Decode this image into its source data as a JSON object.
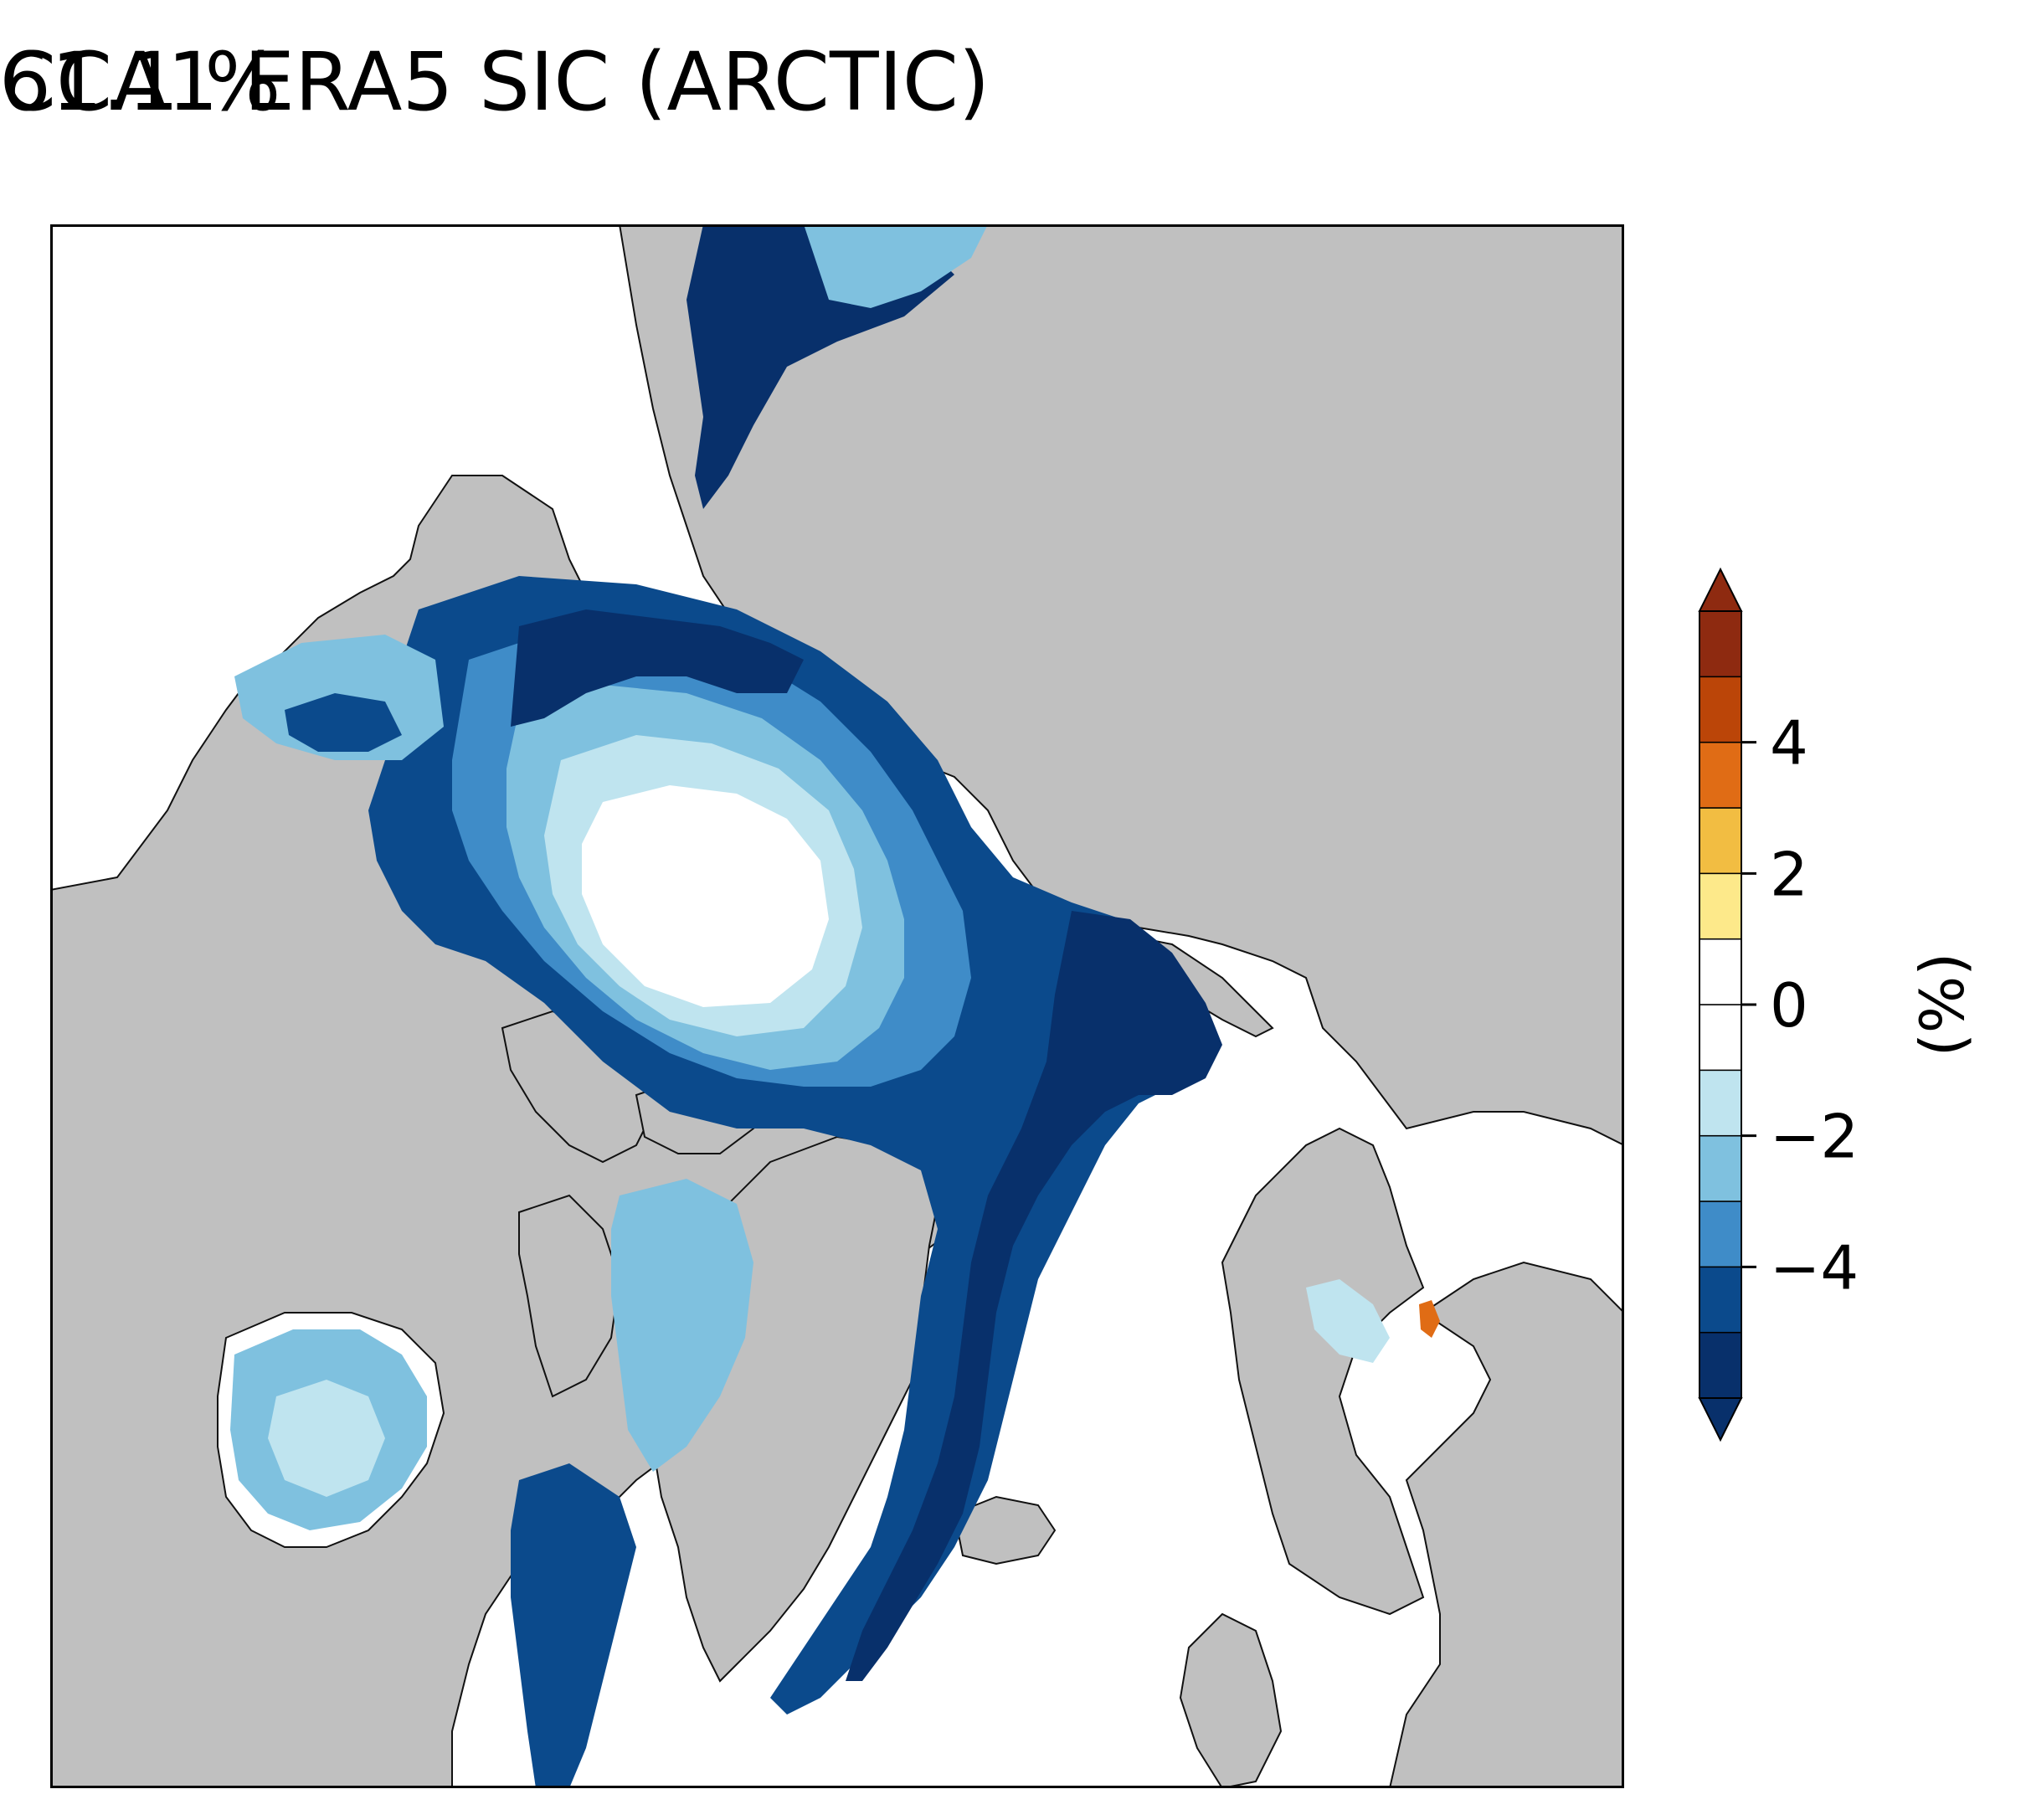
{
  "title": {
    "left": "CCA1 ERA5 SIC (ARCTIC)",
    "right": "61.1 %"
  },
  "colorbar": {
    "label": "(%)",
    "ticks": [
      {
        "value": 4,
        "label": "4"
      },
      {
        "value": 2,
        "label": "2"
      },
      {
        "value": 0,
        "label": "0"
      },
      {
        "value": -2,
        "label": "−2"
      },
      {
        "value": -4,
        "label": "−4"
      }
    ],
    "levels": [
      -6,
      -5,
      -4,
      -3,
      -2,
      -1,
      0,
      1,
      2,
      3,
      4,
      5,
      6
    ],
    "colors": [
      "#08306b",
      "#0b4a8c",
      "#3f8cc8",
      "#7fc1df",
      "#bfe4ef",
      "#ffffff",
      "#ffffff",
      "#fde98a",
      "#f2bd42",
      "#e06c15",
      "#bb4508",
      "#8e2a10"
    ],
    "extend": "both",
    "under_color": "#08306b",
    "over_color": "#8e2a10"
  },
  "map": {
    "projection": "north-polar-stereographic",
    "region": "Arctic",
    "land_color": "#c0c0c0",
    "ocean_color": "#ffffff",
    "coastline_color": "#000000"
  }
}
